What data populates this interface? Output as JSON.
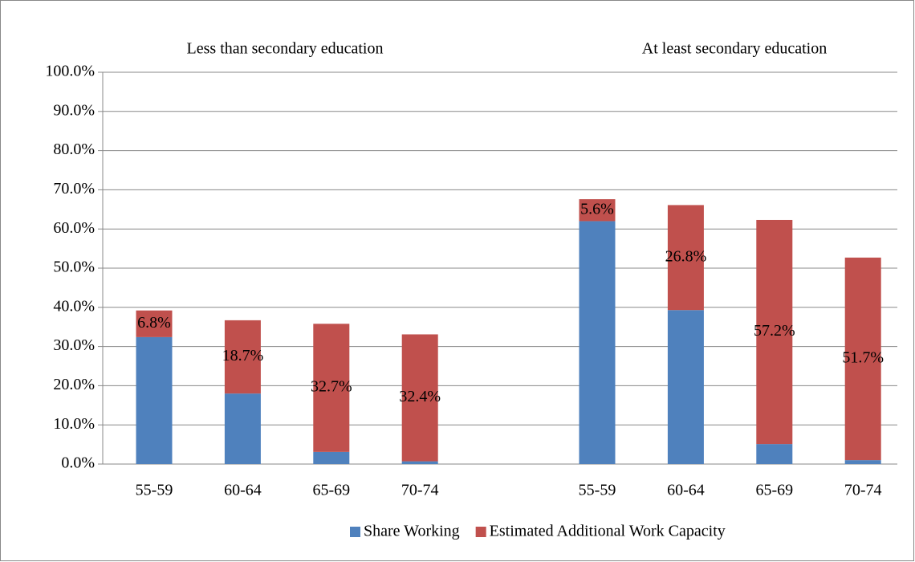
{
  "chart_data": {
    "type": "stacked_bar",
    "annotations": [
      "Less than secondary education",
      "At least secondary education"
    ],
    "categories": [
      "55-59",
      "60-64",
      "65-69",
      "70-74",
      null,
      "55-59",
      "60-64",
      "65-69",
      "70-74"
    ],
    "series": [
      {
        "name": "Share Working",
        "color": "#4f81bd",
        "values": [
          32.4,
          18.0,
          3.1,
          0.7,
          null,
          62.0,
          39.3,
          5.1,
          1.0
        ]
      },
      {
        "name": "Estimated Additional Work Capacity",
        "color": "#c0504d",
        "values": [
          6.8,
          18.7,
          32.7,
          32.4,
          null,
          5.6,
          26.8,
          57.2,
          51.7
        ],
        "value_labels": [
          "6.8%",
          "18.7%",
          "32.7%",
          "32.4%",
          null,
          "5.6%",
          "26.8%",
          "57.2%",
          "51.7%"
        ]
      }
    ],
    "ylim": [
      0,
      100
    ],
    "yticks": [
      {
        "value": 0,
        "label": "0.0%"
      },
      {
        "value": 10,
        "label": "10.0%"
      },
      {
        "value": 20,
        "label": "20.0%"
      },
      {
        "value": 30,
        "label": "30.0%"
      },
      {
        "value": 40,
        "label": "40.0%"
      },
      {
        "value": 50,
        "label": "50.0%"
      },
      {
        "value": 60,
        "label": "60.0%"
      },
      {
        "value": 70,
        "label": "70.0%"
      },
      {
        "value": 80,
        "label": "80.0%"
      },
      {
        "value": 90,
        "label": "90.0%"
      },
      {
        "value": 100,
        "label": "100.0%"
      }
    ],
    "grid": true,
    "legend": "bottom"
  }
}
